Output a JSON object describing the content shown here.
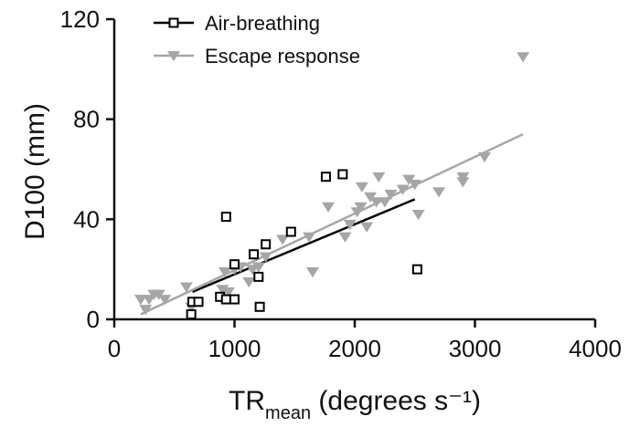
{
  "chart_data": {
    "type": "scatter",
    "title": "",
    "xlabel": {
      "main": "TR",
      "sub": "mean",
      "rest": " (degrees s⁻¹)"
    },
    "ylabel": "D100 (mm)",
    "xlim": [
      0,
      4000
    ],
    "ylim": [
      0,
      120
    ],
    "x_ticks": [
      0,
      1000,
      2000,
      3000,
      4000
    ],
    "y_ticks": [
      0,
      40,
      80,
      120
    ],
    "grid": false,
    "legend_position": "top-left",
    "series": [
      {
        "name": "Air-breathing",
        "marker": "open-square",
        "color": "#000000",
        "points": [
          [
            640,
            2
          ],
          [
            650,
            7
          ],
          [
            700,
            7
          ],
          [
            880,
            9
          ],
          [
            930,
            41
          ],
          [
            930,
            8
          ],
          [
            1000,
            8
          ],
          [
            1000,
            22
          ],
          [
            1160,
            26
          ],
          [
            1200,
            17
          ],
          [
            1210,
            5
          ],
          [
            1260,
            30
          ],
          [
            1470,
            35
          ],
          [
            1760,
            57
          ],
          [
            1900,
            58
          ],
          [
            2520,
            20
          ]
        ],
        "fit": {
          "x": [
            650,
            2500
          ],
          "y": [
            11,
            48
          ]
        }
      },
      {
        "name": "Escape response",
        "marker": "filled-triangle-down",
        "color": "#a6a6a6",
        "points": [
          [
            220,
            8
          ],
          [
            260,
            4
          ],
          [
            290,
            8
          ],
          [
            330,
            10
          ],
          [
            370,
            10
          ],
          [
            420,
            8
          ],
          [
            600,
            13
          ],
          [
            640,
            5
          ],
          [
            900,
            12
          ],
          [
            920,
            19
          ],
          [
            950,
            11
          ],
          [
            1000,
            20
          ],
          [
            1050,
            21
          ],
          [
            1120,
            15
          ],
          [
            1150,
            20
          ],
          [
            1200,
            21
          ],
          [
            1260,
            25
          ],
          [
            1400,
            32
          ],
          [
            1620,
            33
          ],
          [
            1650,
            19
          ],
          [
            1780,
            45
          ],
          [
            1920,
            33
          ],
          [
            1960,
            38
          ],
          [
            2020,
            43
          ],
          [
            2050,
            45
          ],
          [
            2060,
            53
          ],
          [
            2100,
            37
          ],
          [
            2130,
            49
          ],
          [
            2180,
            47
          ],
          [
            2200,
            57
          ],
          [
            2250,
            47
          ],
          [
            2300,
            50
          ],
          [
            2400,
            52
          ],
          [
            2450,
            56
          ],
          [
            2500,
            54
          ],
          [
            2530,
            42
          ],
          [
            2700,
            51
          ],
          [
            2900,
            57
          ],
          [
            2900,
            55
          ],
          [
            3080,
            65
          ],
          [
            3400,
            105
          ]
        ],
        "fit": {
          "x": [
            220,
            3400
          ],
          "y": [
            2,
            74
          ]
        }
      }
    ]
  }
}
